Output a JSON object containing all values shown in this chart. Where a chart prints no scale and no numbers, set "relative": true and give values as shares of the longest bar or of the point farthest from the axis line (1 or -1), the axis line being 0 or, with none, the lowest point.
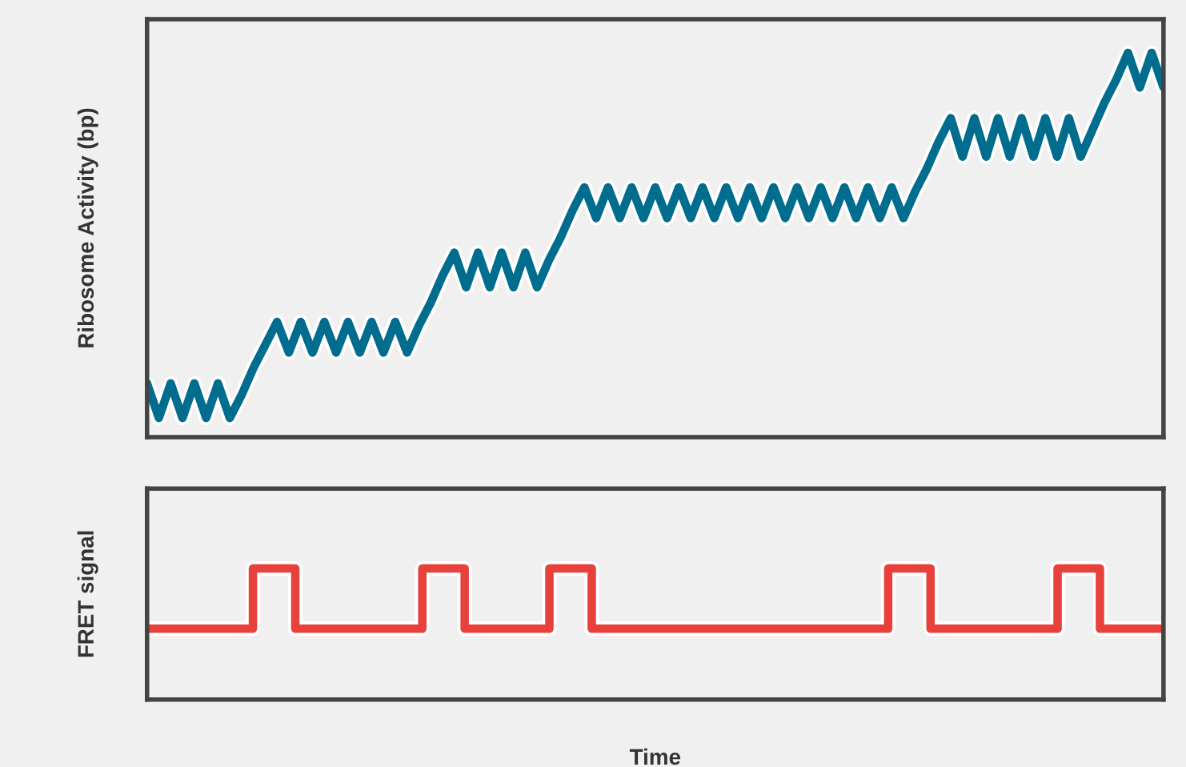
{
  "chart_data": [
    {
      "type": "line",
      "ylabel": "Ribosome Activity (bp)",
      "relative": true,
      "tick_labels": false,
      "categories": [
        null,
        null,
        null,
        null,
        null,
        null,
        null,
        null,
        null,
        null,
        null,
        null,
        null,
        null,
        null,
        null,
        null,
        null,
        null,
        null,
        null,
        null,
        null,
        null,
        null,
        null,
        null,
        null,
        null,
        null,
        null,
        null,
        null,
        null,
        null,
        null,
        null,
        null,
        null,
        null,
        null,
        null,
        null,
        null,
        null,
        null,
        null,
        null,
        null,
        null,
        null,
        null,
        null,
        null,
        null,
        null,
        null,
        null,
        null,
        null,
        null,
        null,
        null,
        null,
        null,
        null,
        null,
        null,
        null,
        null,
        null,
        null,
        null,
        null,
        null,
        null,
        null,
        null,
        null,
        null,
        null,
        null,
        null,
        null,
        null,
        null,
        null
      ],
      "series": [
        {
          "color": "#006d8f",
          "values": [
            0.14,
            0.05,
            0.14,
            0.05,
            0.14,
            0.05,
            0.14,
            0.05,
            0.11,
            0.18,
            0.24,
            0.3,
            0.22,
            0.3,
            0.22,
            0.3,
            0.22,
            0.3,
            0.22,
            0.3,
            0.22,
            0.3,
            0.22,
            0.29,
            0.35,
            0.42,
            0.48,
            0.39,
            0.48,
            0.39,
            0.48,
            0.39,
            0.48,
            0.39,
            0.46,
            0.52,
            0.59,
            0.65,
            0.57,
            0.65,
            0.57,
            0.65,
            0.57,
            0.65,
            0.57,
            0.65,
            0.57,
            0.65,
            0.57,
            0.65,
            0.57,
            0.65,
            0.57,
            0.65,
            0.57,
            0.65,
            0.57,
            0.65,
            0.57,
            0.65,
            0.57,
            0.65,
            0.57,
            0.65,
            0.57,
            0.64,
            0.7,
            0.77,
            0.83,
            0.73,
            0.83,
            0.73,
            0.83,
            0.73,
            0.83,
            0.73,
            0.83,
            0.73,
            0.83,
            0.73,
            0.8,
            0.87,
            0.93,
            1,
            0.91,
            1,
            0.91
          ]
        }
      ]
    },
    {
      "type": "step",
      "ylabel": "FRET signal",
      "xlabel": "Time",
      "relative": true,
      "tick_labels": false,
      "categories": [
        null,
        null,
        null,
        null,
        null,
        null,
        null,
        null,
        null,
        null,
        null,
        null,
        null,
        null,
        null,
        null,
        null,
        null,
        null,
        null,
        null,
        null,
        null,
        null,
        null,
        null,
        null,
        null,
        null,
        null,
        null,
        null,
        null,
        null,
        null,
        null,
        null,
        null,
        null,
        null,
        null,
        null,
        null,
        null,
        null,
        null,
        null,
        null,
        null
      ],
      "series": [
        {
          "color": "#e8413c",
          "values": [
            0.54,
            0.54,
            0.54,
            0.54,
            0.54,
            1,
            1,
            0.54,
            0.54,
            0.54,
            0.54,
            0.54,
            0.54,
            1,
            1,
            0.54,
            0.54,
            0.54,
            0.54,
            1,
            1,
            0.54,
            0.54,
            0.54,
            0.54,
            0.54,
            0.54,
            0.54,
            0.54,
            0.54,
            0.54,
            0.54,
            0.54,
            0.54,
            0.54,
            1,
            1,
            0.54,
            0.54,
            0.54,
            0.54,
            0.54,
            0.54,
            1,
            1,
            0.54,
            0.54,
            0.54,
            0.54
          ]
        }
      ]
    }
  ]
}
